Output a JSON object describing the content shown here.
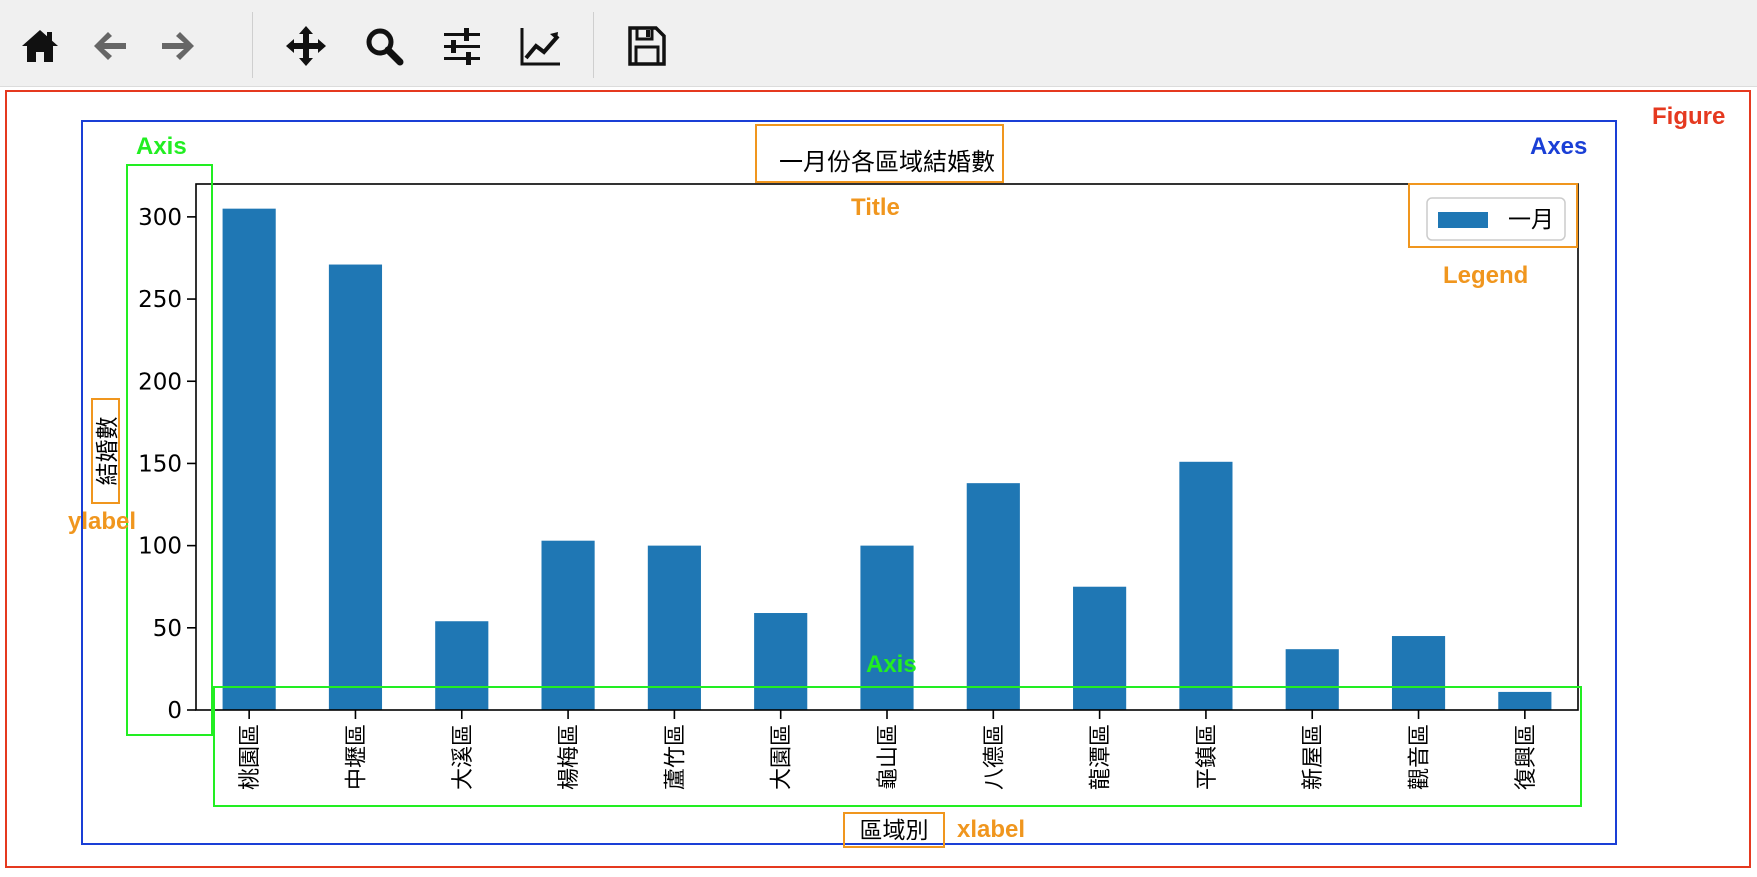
{
  "toolbar": {
    "buttons": [
      {
        "name": "home-button",
        "icon": "home-icon"
      },
      {
        "name": "back-button",
        "icon": "arrow-left-icon"
      },
      {
        "name": "forward-button",
        "icon": "arrow-right-icon"
      },
      {
        "name": "pan-button",
        "icon": "move-icon"
      },
      {
        "name": "zoom-button",
        "icon": "magnifier-icon"
      },
      {
        "name": "subplots-button",
        "icon": "sliders-icon"
      },
      {
        "name": "edit-axes-button",
        "icon": "line-chart-icon"
      },
      {
        "name": "save-button",
        "icon": "floppy-icon"
      }
    ]
  },
  "annotations": {
    "figure": "Figure",
    "axes": "Axes",
    "axis_y": "Axis",
    "axis_x": "Axis",
    "title": "Title",
    "legend": "Legend",
    "ylabel": "ylabel",
    "xlabel": "xlabel",
    "colors": {
      "figure": "#e5391f",
      "axes": "#1a3fd6",
      "axis": "#22ee22",
      "component": "#f0961e"
    }
  },
  "chart_data": {
    "type": "bar",
    "title": "一月份各區域結婚數",
    "xlabel": "區域別",
    "ylabel": "結婚數",
    "categories": [
      "桃園區",
      "中壢區",
      "大溪區",
      "楊梅區",
      "蘆竹區",
      "大園區",
      "龜山區",
      "八德區",
      "龍潭區",
      "平鎮區",
      "新屋區",
      "觀音區",
      "復興區"
    ],
    "series": [
      {
        "name": "一月",
        "values": [
          305,
          271,
          54,
          103,
          100,
          59,
          100,
          138,
          75,
          151,
          37,
          45,
          11
        ],
        "color": "#1f77b4"
      }
    ],
    "ylim": [
      0,
      320
    ],
    "yticks": [
      0,
      50,
      100,
      150,
      200,
      250,
      300
    ],
    "legend": "top-right",
    "grid": false
  }
}
